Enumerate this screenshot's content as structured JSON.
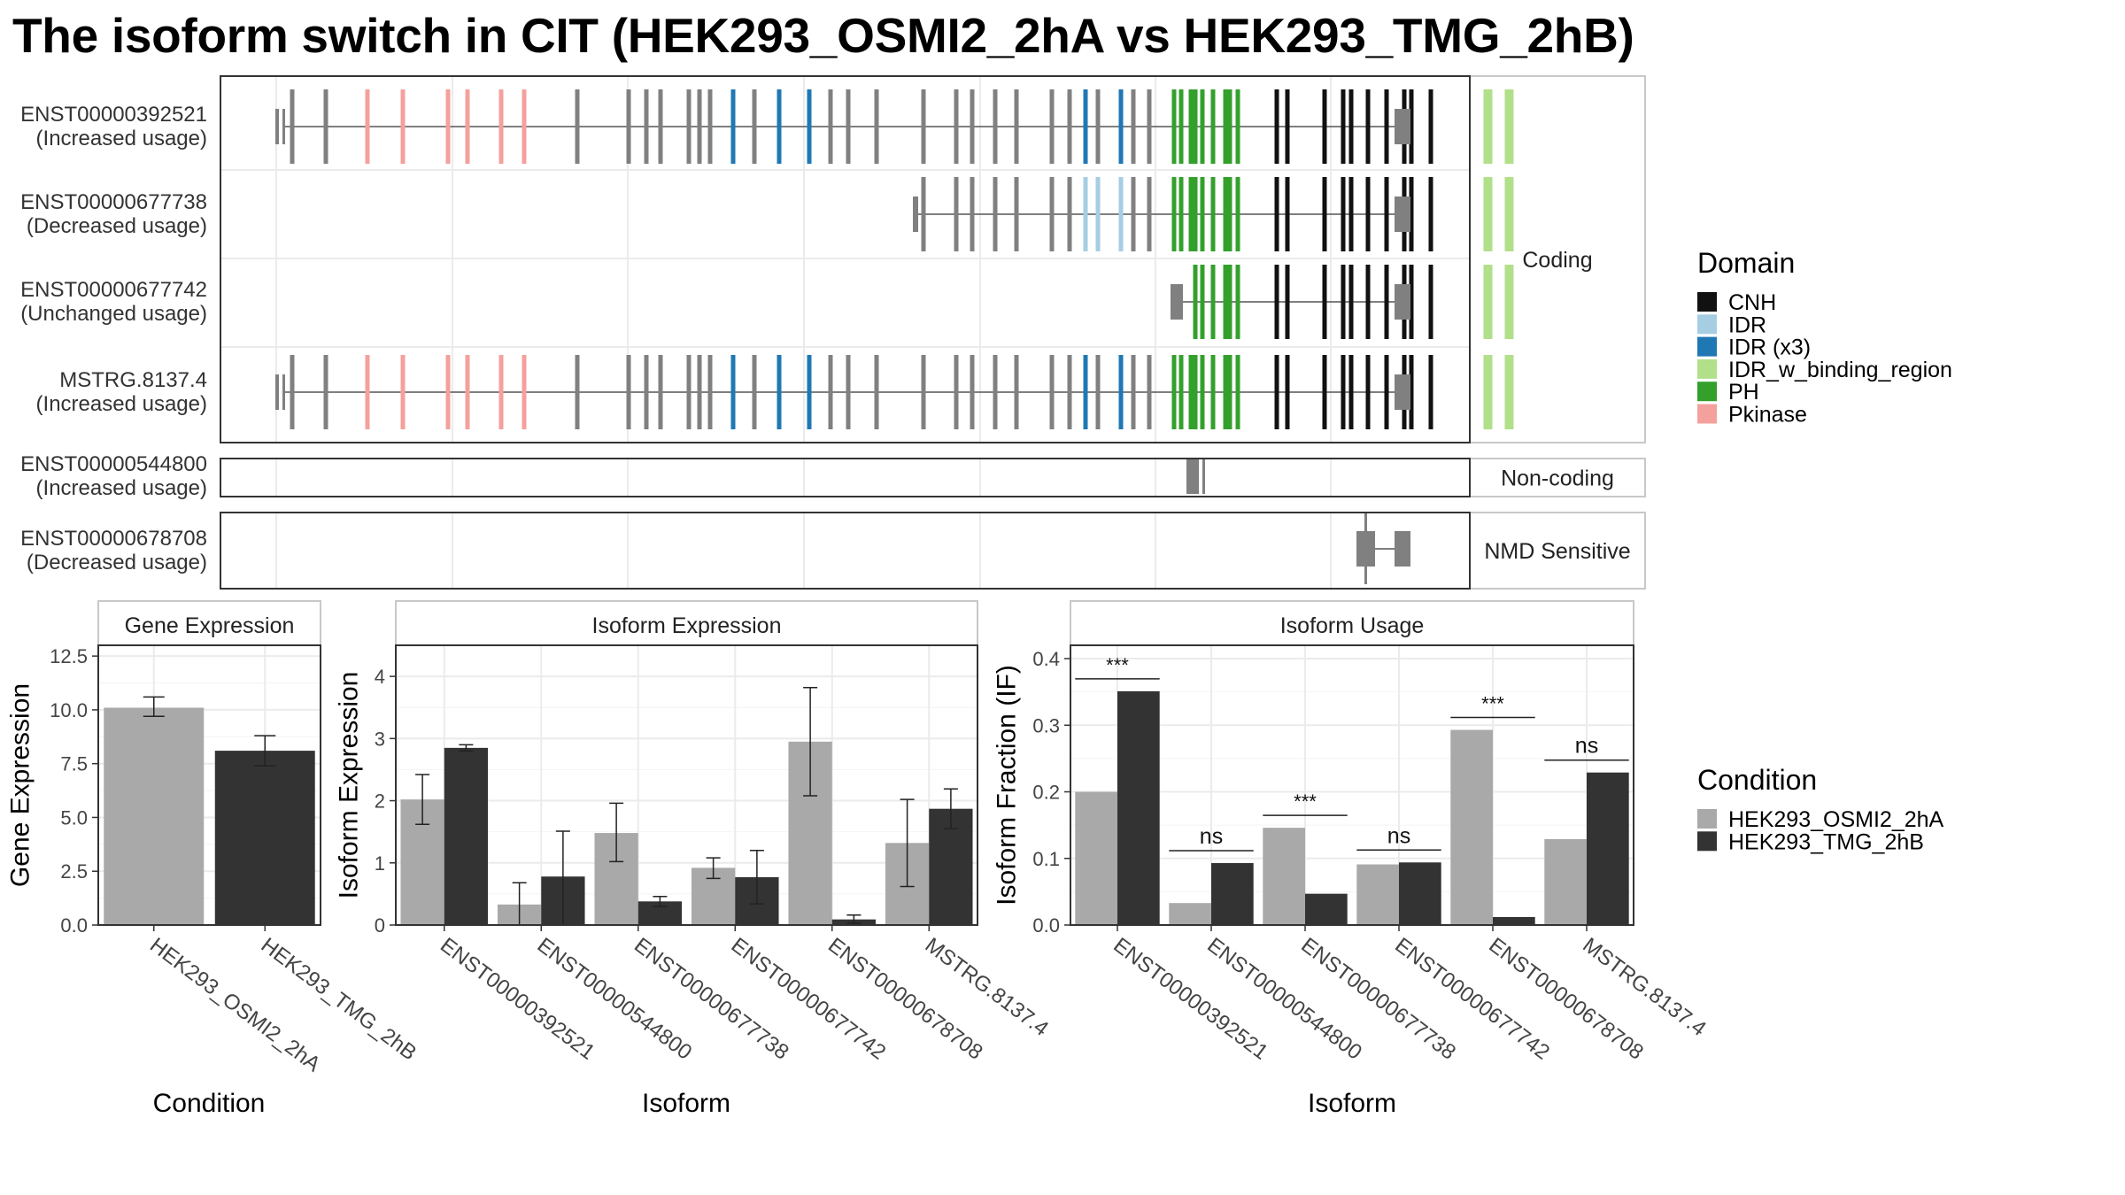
{
  "title": "The isoform switch in CIT (HEK293_OSMI2_2hA vs HEK293_TMG_2hB)",
  "colors": {
    "cond_a": "#A9A9A9",
    "cond_b": "#333333",
    "exon": "#808080",
    "CNH": "#111111",
    "IDR": "#A6CEE3",
    "IDR (x3)": "#1F78B4",
    "IDR_w_binding_region": "#B2DF8A",
    "PH": "#33A02C",
    "Pkinase": "#F4A09C"
  },
  "legend_domain": {
    "title": "Domain",
    "items": [
      "CNH",
      "IDR",
      "IDR (x3)",
      "IDR_w_binding_region",
      "PH",
      "Pkinase"
    ]
  },
  "legend_condition": {
    "title": "Condition",
    "items": [
      "HEK293_OSMI2_2hA",
      "HEK293_TMG_2hB"
    ]
  },
  "structure": {
    "categories": [
      "Coding",
      "Non-coding",
      "NMD Sensitive"
    ],
    "isoforms": [
      {
        "id": "ENST00000392521",
        "usage": "(Increased usage)",
        "category": "Coding"
      },
      {
        "id": "ENST00000677738",
        "usage": "(Decreased usage)",
        "category": "Coding"
      },
      {
        "id": "ENST00000677742",
        "usage": "(Unchanged usage)",
        "category": "Coding"
      },
      {
        "id": "MSTRG.8137.4",
        "usage": "(Increased usage)",
        "category": "Coding"
      },
      {
        "id": "ENST00000544800",
        "usage": "(Increased usage)",
        "category": "Non-coding"
      },
      {
        "id": "ENST00000678708",
        "usage": "(Decreased usage)",
        "category": "NMD Sensitive"
      }
    ]
  },
  "chart_data": [
    {
      "type": "bar",
      "title": "Gene Expression",
      "xlabel": "Condition",
      "ylabel": "Gene Expression",
      "ylim": [
        0,
        13
      ],
      "yticks": [
        "0.0",
        "2.5",
        "5.0",
        "7.5",
        "10.0",
        "12.5"
      ],
      "categories": [
        "HEK293_OSMI2_2hA",
        "HEK293_TMG_2hB"
      ],
      "values": [
        10.1,
        8.1
      ],
      "errors": [
        [
          9.7,
          10.6
        ],
        [
          7.4,
          8.8
        ]
      ]
    },
    {
      "type": "bar",
      "title": "Isoform Expression",
      "xlabel": "Isoform",
      "ylabel": "Isoform Expression",
      "ylim": [
        0,
        4.5
      ],
      "yticks": [
        "0",
        "1",
        "2",
        "3",
        "4"
      ],
      "categories": [
        "ENST00000392521",
        "ENST00000544800",
        "ENST00000677738",
        "ENST00000677742",
        "ENST00000678708",
        "MSTRG.8137.4"
      ],
      "series": [
        {
          "name": "HEK293_OSMI2_2hA",
          "values": [
            2.02,
            0.33,
            1.48,
            0.92,
            2.95,
            1.32
          ],
          "errors": [
            [
              1.62,
              2.42
            ],
            [
              0.0,
              0.68
            ],
            [
              1.02,
              1.96
            ],
            [
              0.75,
              1.08
            ],
            [
              2.08,
              3.82
            ],
            [
              0.62,
              2.02
            ]
          ]
        },
        {
          "name": "HEK293_TMG_2hB",
          "values": [
            2.85,
            0.78,
            0.38,
            0.77,
            0.09,
            1.87
          ],
          "errors": [
            [
              2.8,
              2.9
            ],
            [
              0.0,
              1.51
            ],
            [
              0.3,
              0.46
            ],
            [
              0.34,
              1.2
            ],
            [
              0.03,
              0.16
            ],
            [
              1.55,
              2.19
            ]
          ]
        }
      ]
    },
    {
      "type": "bar",
      "title": "Isoform Usage",
      "xlabel": "Isoform",
      "ylabel": "Isoform Fraction (IF)",
      "ylim": [
        0,
        0.42
      ],
      "yticks": [
        "0.0",
        "0.1",
        "0.2",
        "0.3",
        "0.4"
      ],
      "categories": [
        "ENST00000392521",
        "ENST00000544800",
        "ENST00000677738",
        "ENST00000677742",
        "ENST00000678708",
        "MSTRG.8137.4"
      ],
      "series": [
        {
          "name": "HEK293_OSMI2_2hA",
          "values": [
            0.2,
            0.033,
            0.146,
            0.091,
            0.293,
            0.129
          ]
        },
        {
          "name": "HEK293_TMG_2hB",
          "values": [
            0.351,
            0.093,
            0.047,
            0.094,
            0.012,
            0.229
          ]
        }
      ],
      "significance": [
        "***",
        "ns",
        "***",
        "ns",
        "***",
        "ns"
      ]
    }
  ]
}
